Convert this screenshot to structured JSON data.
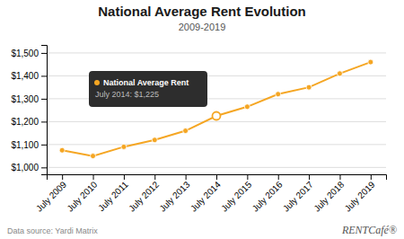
{
  "chart_data": {
    "type": "line",
    "title": "National Average Rent Evolution",
    "subtitle": "2009-2019",
    "categories": [
      "July 2009",
      "July 2010",
      "July 2011",
      "July 2012",
      "July 2013",
      "July 2014",
      "July 2015",
      "July 2016",
      "July 2017",
      "July 2018",
      "July 2019"
    ],
    "values": [
      1075,
      1050,
      1090,
      1120,
      1160,
      1225,
      1265,
      1320,
      1350,
      1410,
      1460
    ],
    "color": "#F5A623",
    "marker": "circle",
    "ylim": [
      970,
      1535
    ],
    "yticks": [
      {
        "value": 1000,
        "label": "$1,000"
      },
      {
        "value": 1100,
        "label": "$1,100"
      },
      {
        "value": 1200,
        "label": "$1,200"
      },
      {
        "value": 1300,
        "label": "$1,300"
      },
      {
        "value": 1400,
        "label": "$1,400"
      },
      {
        "value": 1500,
        "label": "$1,500"
      }
    ],
    "grid": true,
    "annotations": [
      {
        "x": "July 2014",
        "y": 1225,
        "text": "National Average Rent"
      },
      {
        "x": "July 2014",
        "y": 1225,
        "text": "July 2014: $1,225"
      },
      {
        "text": "Data source: Yardi Matrix"
      },
      {
        "text": "RENTCafé®"
      }
    ]
  }
}
